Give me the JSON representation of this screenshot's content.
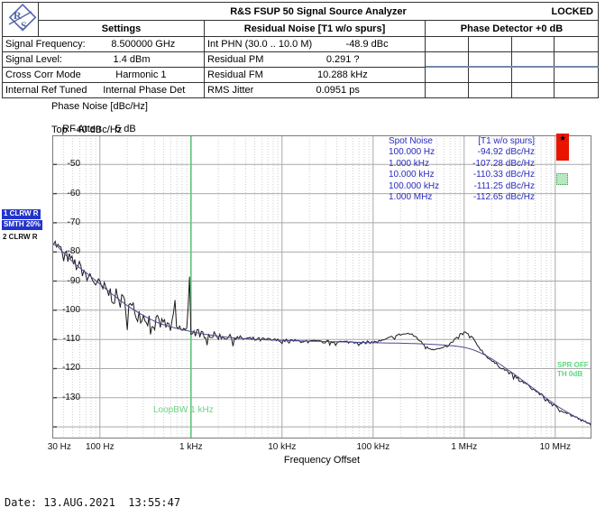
{
  "window": {
    "title": "R&S FSUP 50 Signal Source Analyzer",
    "status": "LOCKED"
  },
  "icons": {
    "star": "★"
  },
  "settings": {
    "header": "Settings",
    "rows": [
      {
        "label": "Signal Frequency:",
        "value": "8.500000 GHz"
      },
      {
        "label": "Signal Level:",
        "value": "1.4 dBm"
      },
      {
        "label": "Cross Corr Mode",
        "value": "Harmonic 1"
      },
      {
        "label": "Internal Ref Tuned",
        "value": "Internal Phase Det"
      }
    ]
  },
  "residual_noise": {
    "header": "Residual Noise [T1 w/o spurs]",
    "rows": [
      {
        "label": "Int PHN (30.0  .. 10.0 M)",
        "value": "-48.9 dBc"
      },
      {
        "label": "Residual PM",
        "value": "0.291 ?"
      },
      {
        "label": "Residual FM",
        "value": "10.288 kHz"
      },
      {
        "label": "RMS Jitter",
        "value": "0.0951 ps"
      }
    ]
  },
  "phase_detector": {
    "header": "Phase Detector +0 dB"
  },
  "meta": {
    "line1": "Phase Noise [dBc/Hz]",
    "line2_label": "RF Atten",
    "line2_value": "5 dB",
    "line3": "Top  -40 dBc/Hz"
  },
  "trace_legend": {
    "t1": "1 CLRW R",
    "t1_smooth": "SMTH 20%",
    "t2": "2 CLRW R"
  },
  "spot_noise": {
    "title": "Spot Noise",
    "trace": "[T1 w/o spurs]",
    "rows": [
      {
        "freq": "100.000 Hz",
        "value": "-94.92 dBc/Hz"
      },
      {
        "freq": "1.000 kHz",
        "value": "-107.28 dBc/Hz"
      },
      {
        "freq": "10.000 kHz",
        "value": "-110.33 dBc/Hz"
      },
      {
        "freq": "100.000 kHz",
        "value": "-111.25 dBc/Hz"
      },
      {
        "freq": "1.000 MHz",
        "value": "-112.65 dBc/Hz"
      }
    ]
  },
  "annotations": {
    "loop_bw": "LoopBW 1 kHz",
    "spur_state": "SPR OFF",
    "threshold": "TH 0dB"
  },
  "axis": {
    "xlabel": "Frequency Offset"
  },
  "footer": {
    "date": "Date: 13.AUG.2021  13:55:47"
  },
  "colors": {
    "spot_text": "#2a2ac0",
    "legend_bg": "#2233cc",
    "badge_red": "#e81400",
    "badge_green": "#b8e8c0",
    "annotation_green": "#5ec57a"
  },
  "chart_data": {
    "type": "line",
    "x_scale": "log",
    "x_range_hz": [
      30,
      25000000
    ],
    "y_top_dbchz": -40,
    "y_bottom_dbchz": -144,
    "ylabel": "Phase Noise [dBc/Hz]",
    "xlabel": "Frequency Offset",
    "y_ticks": [
      -50,
      -60,
      -70,
      -80,
      -90,
      -100,
      -110,
      -120,
      -130
    ],
    "extra_y_lines": [
      -140
    ],
    "x_ticks": [
      {
        "hz": 30,
        "label": "30 Hz"
      },
      {
        "hz": 100,
        "label": "100 Hz"
      },
      {
        "hz": 1000,
        "label": "1 kHz"
      },
      {
        "hz": 10000,
        "label": "10 kHz"
      },
      {
        "hz": 100000,
        "label": "100 kHz"
      },
      {
        "hz": 1000000,
        "label": "1 MHz"
      },
      {
        "hz": 10000000,
        "label": "10 MHz"
      }
    ],
    "marker_line_hz": 1000,
    "grid": {
      "major": "#a9a9a9",
      "minor": "#cccccc",
      "border": "#7a7a7a",
      "marker": "#5ec57a"
    },
    "series": [
      {
        "name": "Trace 1 raw",
        "color": "#1c1c1c",
        "noise_seed": 7,
        "noise_envelope": [
          [
            30,
            1.6
          ],
          [
            80,
            2.6
          ],
          [
            150,
            3.2
          ],
          [
            300,
            3.0
          ],
          [
            600,
            2.2
          ],
          [
            1000,
            1.6
          ],
          [
            3000,
            1.0
          ],
          [
            10000,
            0.55
          ],
          [
            50000,
            0.45
          ],
          [
            200000,
            0.45
          ],
          [
            1000000,
            0.4
          ],
          [
            3000000,
            0.5
          ],
          [
            25000000,
            0.55
          ]
        ],
        "points": [
          [
            30,
            -76
          ],
          [
            40,
            -80.5
          ],
          [
            55,
            -84.5
          ],
          [
            75,
            -87.8
          ],
          [
            100,
            -92
          ],
          [
            140,
            -95
          ],
          [
            200,
            -98.5
          ],
          [
            280,
            -101.5
          ],
          [
            400,
            -104
          ],
          [
            550,
            -105.4
          ],
          [
            750,
            -106.5
          ],
          [
            1000,
            -107.3
          ],
          [
            1400,
            -108.2
          ],
          [
            2000,
            -108.9
          ],
          [
            3000,
            -109.5
          ],
          [
            5000,
            -110
          ],
          [
            10000,
            -110.35
          ],
          [
            20000,
            -110.7
          ],
          [
            50000,
            -110.9
          ],
          [
            100000,
            -111
          ],
          [
            130000,
            -110.4
          ],
          [
            160000,
            -109.2
          ],
          [
            200000,
            -108.3
          ],
          [
            250000,
            -108
          ],
          [
            300000,
            -109.3
          ],
          [
            350000,
            -111.5
          ],
          [
            420000,
            -113.1
          ],
          [
            500000,
            -113.4
          ],
          [
            600000,
            -112.9
          ],
          [
            700000,
            -111.6
          ],
          [
            800000,
            -109.9
          ],
          [
            900000,
            -108.3
          ],
          [
            1000000,
            -107.6
          ],
          [
            1100000,
            -108.1
          ],
          [
            1250000,
            -109.8
          ],
          [
            1450000,
            -112.6
          ],
          [
            1700000,
            -115.3
          ],
          [
            2100000,
            -117.9
          ],
          [
            3000000,
            -121
          ],
          [
            4500000,
            -124.8
          ],
          [
            7000000,
            -129
          ],
          [
            10000000,
            -133
          ],
          [
            15000000,
            -136
          ],
          [
            20000000,
            -138
          ],
          [
            25000000,
            -139.5
          ]
        ]
      },
      {
        "name": "Trace 2 smoothed",
        "color": "#4b4b96",
        "points": [
          [
            30,
            -76
          ],
          [
            40,
            -80.5
          ],
          [
            55,
            -84.5
          ],
          [
            75,
            -87.8
          ],
          [
            100,
            -91
          ],
          [
            140,
            -94.8
          ],
          [
            200,
            -98.5
          ],
          [
            280,
            -101.3
          ],
          [
            400,
            -103.9
          ],
          [
            550,
            -105.4
          ],
          [
            750,
            -106.5
          ],
          [
            1000,
            -107.3
          ],
          [
            1400,
            -108.2
          ],
          [
            2000,
            -108.9
          ],
          [
            3000,
            -109.5
          ],
          [
            5000,
            -110
          ],
          [
            10000,
            -110.35
          ],
          [
            20000,
            -110.6
          ],
          [
            50000,
            -110.9
          ],
          [
            100000,
            -111.15
          ],
          [
            200000,
            -111.3
          ],
          [
            400000,
            -111.6
          ],
          [
            700000,
            -112.1
          ],
          [
            1000000,
            -112.65
          ],
          [
            1400000,
            -114
          ],
          [
            2000000,
            -116.6
          ],
          [
            3000000,
            -120.3
          ],
          [
            4500000,
            -124.3
          ],
          [
            7000000,
            -128.8
          ],
          [
            10000000,
            -132.5
          ],
          [
            15000000,
            -135.8
          ],
          [
            20000000,
            -137.8
          ],
          [
            25000000,
            -139.5
          ]
        ]
      }
    ],
    "spurs": [
      {
        "hz": 500,
        "peak": -104
      },
      {
        "hz": 660,
        "peak": -96.5
      },
      {
        "hz": 980,
        "peak": -88.5
      }
    ]
  }
}
